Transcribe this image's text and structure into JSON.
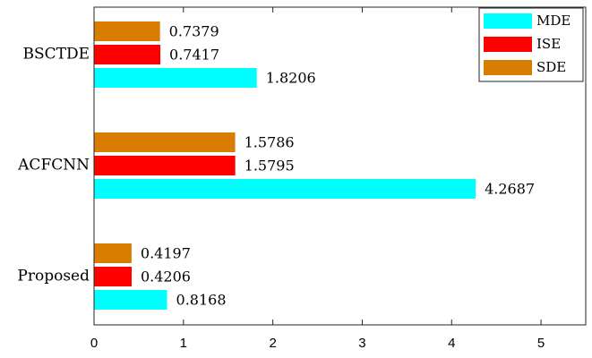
{
  "chart_data": {
    "type": "bar",
    "orientation": "horizontal",
    "categories": [
      "BSCTDE",
      "ACFCNN",
      "Proposed"
    ],
    "series": [
      {
        "name": "MDE",
        "color": "#00ffff",
        "values": [
          1.8206,
          4.2687,
          0.8168
        ]
      },
      {
        "name": "ISE",
        "color": "#ff0000",
        "values": [
          0.7417,
          1.5795,
          0.4206
        ]
      },
      {
        "name": "SDE",
        "color": "#d97d00",
        "values": [
          0.7379,
          1.5786,
          0.4197
        ]
      }
    ],
    "data_labels": [
      [
        "1.8206",
        "0.7417",
        "0.7379"
      ],
      [
        "4.2687",
        "1.5795",
        "1.5786"
      ],
      [
        "0.8168",
        "0.4206",
        "0.4197"
      ]
    ],
    "xlim": [
      0,
      5.5
    ],
    "xticks": [
      0,
      1,
      2,
      3,
      4,
      5
    ],
    "xtick_labels": [
      "0",
      "1",
      "2",
      "3",
      "4",
      "5"
    ],
    "legend_position": "top-right",
    "grid": false,
    "title": "",
    "xlabel": "",
    "ylabel": ""
  }
}
